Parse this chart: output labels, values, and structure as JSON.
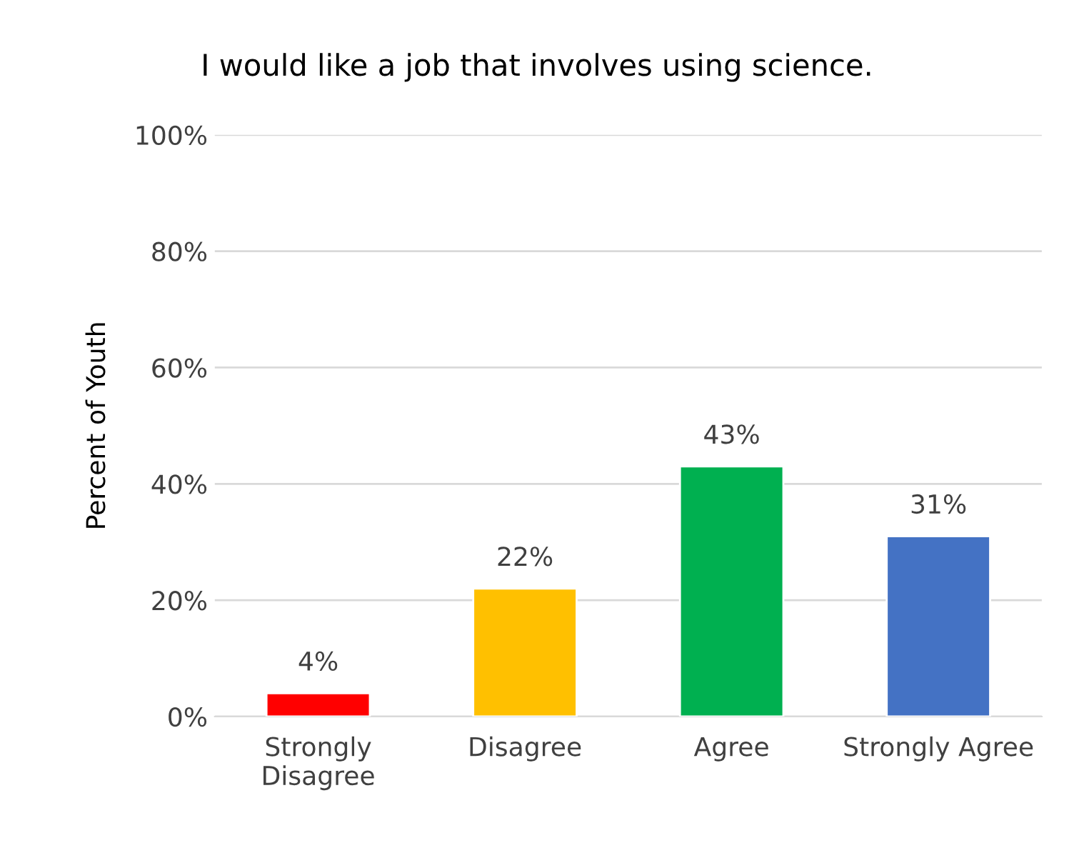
{
  "chart_data": {
    "type": "bar",
    "title": "I would like a job that involves using science.",
    "ylabel": "Percent of Youth",
    "categories": [
      "Strongly\nDisagree",
      "Disagree",
      "Agree",
      "Strongly Agree"
    ],
    "values": [
      4,
      22,
      43,
      31
    ],
    "colors": [
      "#ff0000",
      "#ffc000",
      "#00b050",
      "#4472c4"
    ],
    "value_labels": [
      "4%",
      "22%",
      "43%",
      "31%"
    ],
    "ylim": [
      0,
      100
    ],
    "yticks": [
      {
        "value": 0,
        "label": "0%"
      },
      {
        "value": 20,
        "label": "20%"
      },
      {
        "value": 40,
        "label": "40%"
      },
      {
        "value": 60,
        "label": "60%"
      },
      {
        "value": 80,
        "label": "80%"
      },
      {
        "value": 100,
        "label": "100%"
      }
    ],
    "grid": "y",
    "legend": false
  }
}
